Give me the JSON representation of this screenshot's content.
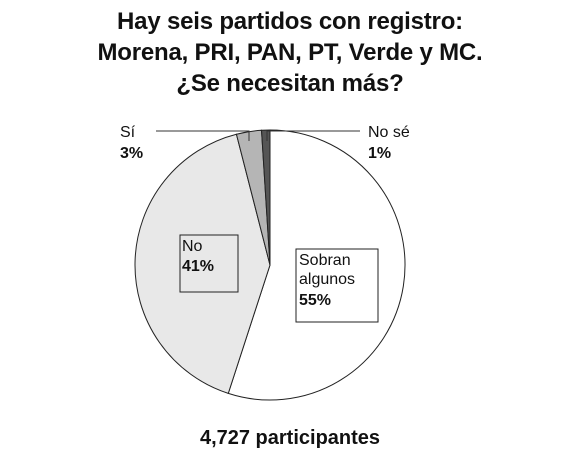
{
  "title_lines": [
    "Hay seis partidos con registro:",
    "Morena, PRI, PAN, PT, Verde y MC.",
    "¿Se necesitan más?"
  ],
  "footer": "4,727 participantes",
  "chart_data": {
    "type": "pie",
    "slices": [
      {
        "label": "Sobran algunos",
        "label_lines": [
          "Sobran",
          "algunos"
        ],
        "value": 55,
        "display": "55%",
        "color": "#ffffff"
      },
      {
        "label": "No",
        "label_lines": [
          "No"
        ],
        "value": 41,
        "display": "41%",
        "color": "#e8e8e8"
      },
      {
        "label": "Sí",
        "label_lines": [
          "Sí"
        ],
        "value": 3,
        "display": "3%",
        "color": "#b5b5b5"
      },
      {
        "label": "No sé",
        "label_lines": [
          "No sé"
        ],
        "value": 1,
        "display": "1%",
        "color": "#555555"
      }
    ]
  }
}
